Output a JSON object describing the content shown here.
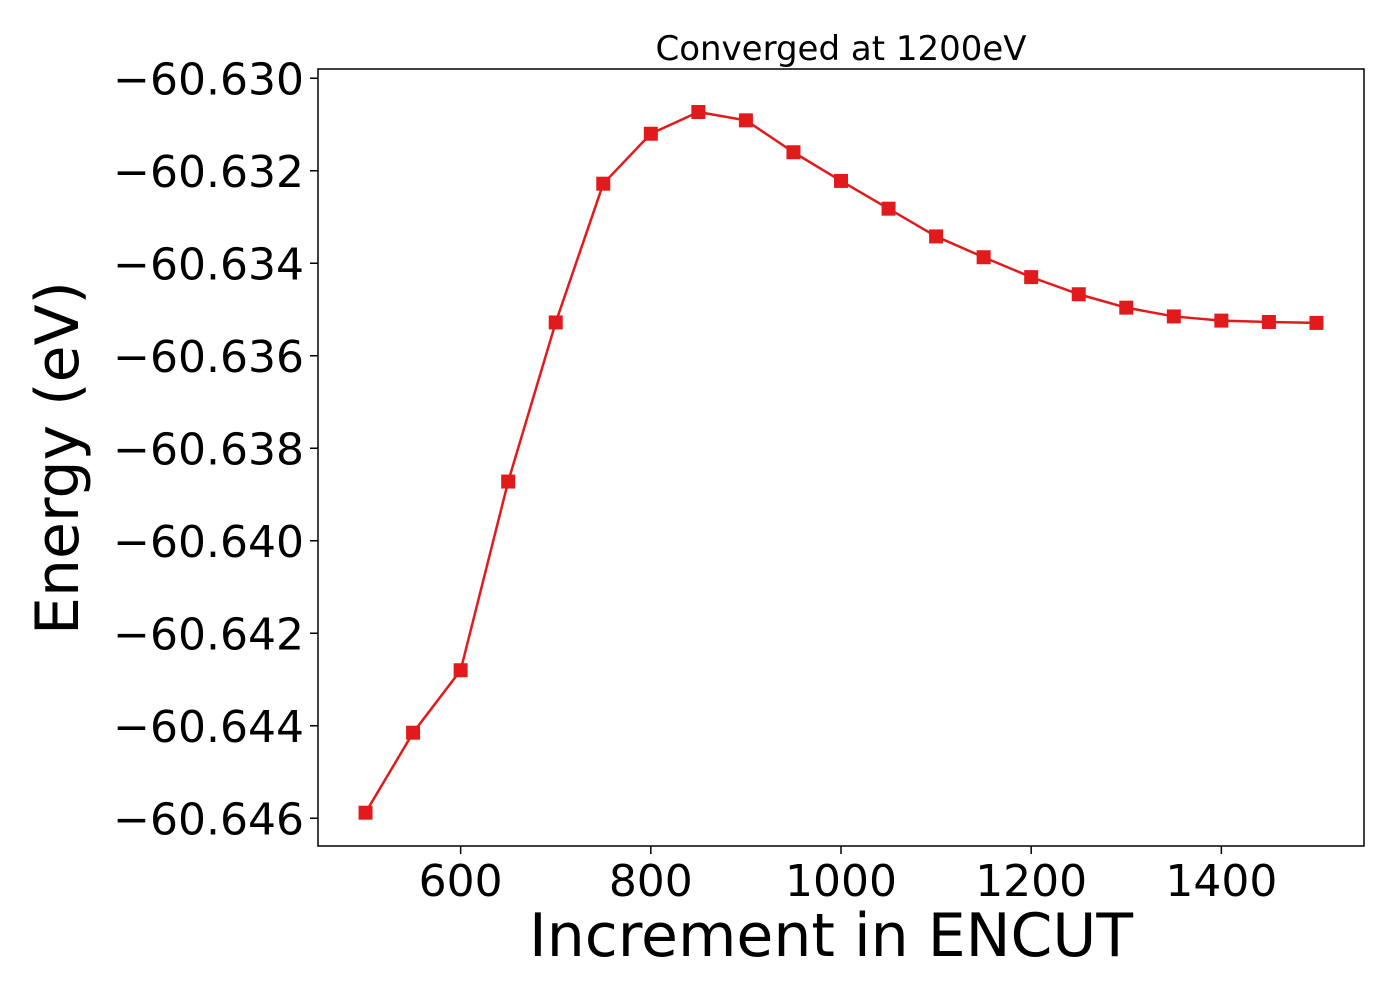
{
  "chart_data": {
    "type": "line",
    "title": "Converged at 1200eV",
    "xlabel": "Increment in ENCUT",
    "ylabel": "Energy (eV)",
    "xlim": [
      450,
      1550
    ],
    "ylim": [
      -60.6466,
      -60.6298
    ],
    "x_ticks": [
      600,
      800,
      1000,
      1200,
      1400
    ],
    "y_ticks": [
      -60.63,
      -60.632,
      -60.634,
      -60.636,
      -60.638,
      -60.64,
      -60.642,
      -60.644,
      -60.646
    ],
    "grid": false,
    "legend": "none",
    "series": [
      {
        "color": "#e31a1c",
        "marker": "square",
        "x": [
          500,
          550,
          600,
          650,
          700,
          750,
          800,
          850,
          900,
          950,
          1000,
          1050,
          1100,
          1150,
          1200,
          1250,
          1300,
          1350,
          1400,
          1450,
          1500
        ],
        "y": [
          -60.64588,
          -60.64415,
          -60.6428,
          -60.63872,
          -60.63528,
          -60.63228,
          -60.6312,
          -60.63073,
          -60.63091,
          -60.6316,
          -60.63222,
          -60.63282,
          -60.63342,
          -60.63387,
          -60.6343,
          -60.63467,
          -60.63496,
          -60.63515,
          -60.63524,
          -60.63527,
          -60.63529
        ]
      }
    ]
  }
}
